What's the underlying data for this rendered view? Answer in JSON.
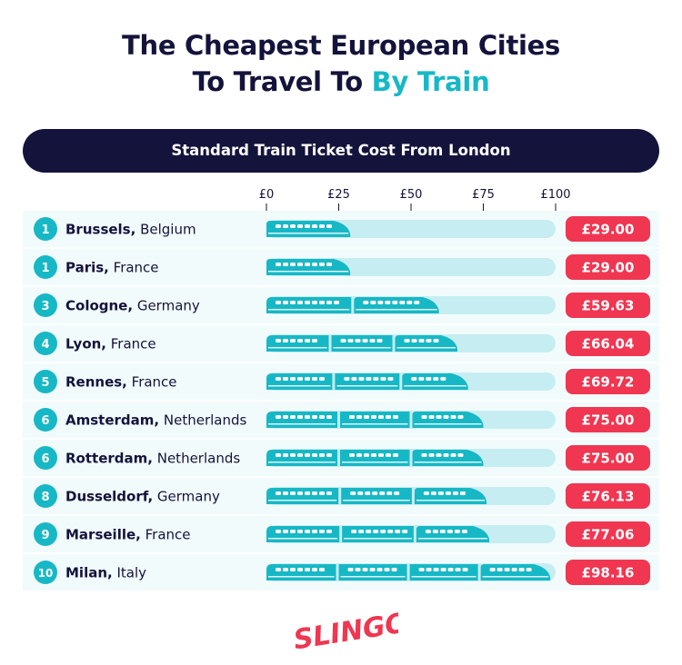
{
  "header": {
    "title_line1": "The Cheapest European Cities",
    "title_line2_prefix": "To Travel To ",
    "title_line2_accent": "By Train"
  },
  "banner": {
    "label": "Standard Train Ticket Cost From London"
  },
  "colors": {
    "navy": "#14133b",
    "teal": "#17b8c6",
    "track": "#c6eef2",
    "row_bg": "#f2fbfc",
    "badge_red": "#f03651"
  },
  "chart_data": {
    "type": "bar",
    "orientation": "horizontal",
    "title": "Standard Train Ticket Cost From London",
    "xlim": [
      0,
      100
    ],
    "x_ticks": [
      "£0",
      "£25",
      "£50",
      "£75",
      "£100"
    ],
    "rows": [
      {
        "rank": "1",
        "city": "Brussels,",
        "country": " Belgium",
        "value": 29.0,
        "label": "£29.00"
      },
      {
        "rank": "1",
        "city": "Paris,",
        "country": " France",
        "value": 29.0,
        "label": "£29.00"
      },
      {
        "rank": "3",
        "city": "Cologne,",
        "country": " Germany",
        "value": 59.63,
        "label": "£59.63"
      },
      {
        "rank": "4",
        "city": "Lyon,",
        "country": " France",
        "value": 66.04,
        "label": "£66.04"
      },
      {
        "rank": "5",
        "city": "Rennes,",
        "country": " France",
        "value": 69.72,
        "label": "£69.72"
      },
      {
        "rank": "6",
        "city": "Amsterdam,",
        "country": " Netherlands",
        "value": 75.0,
        "label": "£75.00"
      },
      {
        "rank": "6",
        "city": "Rotterdam,",
        "country": " Netherlands",
        "value": 75.0,
        "label": "£75.00"
      },
      {
        "rank": "8",
        "city": "Dusseldorf,",
        "country": " Germany",
        "value": 76.13,
        "label": "£76.13"
      },
      {
        "rank": "9",
        "city": "Marseille,",
        "country": " France",
        "value": 77.06,
        "label": "£77.06"
      },
      {
        "rank": "10",
        "city": "Milan,",
        "country": " Italy",
        "value": 98.16,
        "label": "£98.16"
      }
    ]
  },
  "brand": {
    "logo_text": "SLINGO"
  }
}
